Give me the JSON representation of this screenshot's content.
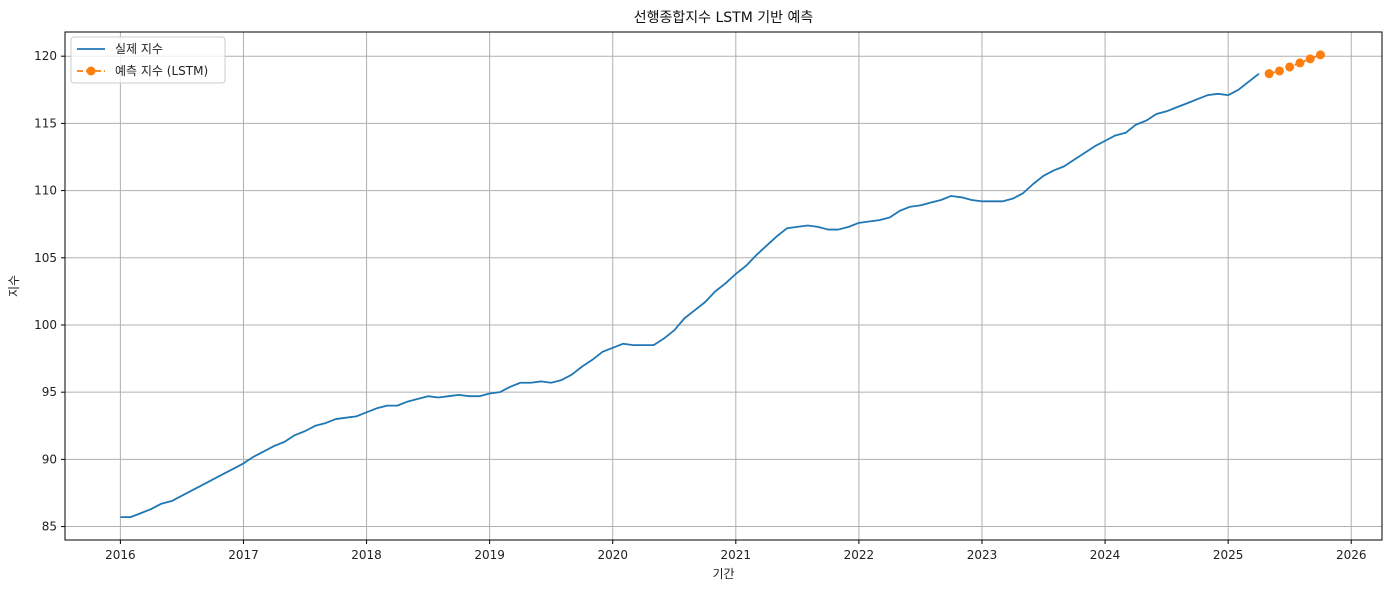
{
  "chart_data": {
    "type": "line",
    "title": "선행종합지수 LSTM 기반 예측",
    "xlabel": "기간",
    "ylabel": "지수",
    "xlim": [
      2015.55,
      2026.25
    ],
    "ylim": [
      84.0,
      121.8
    ],
    "x_ticks": [
      2016,
      2017,
      2018,
      2019,
      2020,
      2021,
      2022,
      2023,
      2024,
      2025,
      2026
    ],
    "x_tick_labels": [
      "2016",
      "2017",
      "2018",
      "2019",
      "2020",
      "2021",
      "2022",
      "2023",
      "2024",
      "2025",
      "2026"
    ],
    "y_ticks": [
      85,
      90,
      95,
      100,
      105,
      110,
      115,
      120
    ],
    "y_tick_labels": [
      "85",
      "90",
      "95",
      "100",
      "105",
      "110",
      "115",
      "120"
    ],
    "grid": true,
    "legend_position": "top-left",
    "series": [
      {
        "name": "실제 지수",
        "style": "solid",
        "color": "#1f77b4",
        "x": [
          2016.0,
          2016.083,
          2016.167,
          2016.25,
          2016.333,
          2016.417,
          2016.5,
          2016.583,
          2016.667,
          2016.75,
          2016.833,
          2016.917,
          2017.0,
          2017.083,
          2017.167,
          2017.25,
          2017.333,
          2017.417,
          2017.5,
          2017.583,
          2017.667,
          2017.75,
          2017.833,
          2017.917,
          2018.0,
          2018.083,
          2018.167,
          2018.25,
          2018.333,
          2018.417,
          2018.5,
          2018.583,
          2018.667,
          2018.75,
          2018.833,
          2018.917,
          2019.0,
          2019.083,
          2019.167,
          2019.25,
          2019.333,
          2019.417,
          2019.5,
          2019.583,
          2019.667,
          2019.75,
          2019.833,
          2019.917,
          2020.0,
          2020.083,
          2020.167,
          2020.25,
          2020.333,
          2020.417,
          2020.5,
          2020.583,
          2020.667,
          2020.75,
          2020.833,
          2020.917,
          2021.0,
          2021.083,
          2021.167,
          2021.25,
          2021.333,
          2021.417,
          2021.5,
          2021.583,
          2021.667,
          2021.75,
          2021.833,
          2021.917,
          2022.0,
          2022.083,
          2022.167,
          2022.25,
          2022.333,
          2022.417,
          2022.5,
          2022.583,
          2022.667,
          2022.75,
          2022.833,
          2022.917,
          2023.0,
          2023.083,
          2023.167,
          2023.25,
          2023.333,
          2023.417,
          2023.5,
          2023.583,
          2023.667,
          2023.75,
          2023.833,
          2023.917,
          2024.0,
          2024.083,
          2024.167,
          2024.25,
          2024.333,
          2024.417,
          2024.5,
          2024.583,
          2024.667,
          2024.75,
          2024.833,
          2024.917,
          2025.0,
          2025.083,
          2025.167,
          2025.25
        ],
        "values": [
          85.7,
          85.7,
          86.0,
          86.3,
          86.7,
          86.9,
          87.3,
          87.7,
          88.1,
          88.5,
          88.9,
          89.3,
          89.7,
          90.2,
          90.6,
          91.0,
          91.3,
          91.8,
          92.1,
          92.5,
          92.7,
          93.0,
          93.1,
          93.2,
          93.5,
          93.8,
          94.0,
          94.0,
          94.3,
          94.5,
          94.7,
          94.6,
          94.7,
          94.8,
          94.7,
          94.7,
          94.9,
          95.0,
          95.4,
          95.7,
          95.7,
          95.8,
          95.7,
          95.9,
          96.3,
          96.9,
          97.4,
          98.0,
          98.3,
          98.6,
          98.5,
          98.5,
          98.5,
          99.0,
          99.6,
          100.5,
          101.1,
          101.7,
          102.5,
          103.1,
          103.8,
          104.4,
          105.2,
          105.9,
          106.6,
          107.2,
          107.3,
          107.4,
          107.3,
          107.1,
          107.1,
          107.3,
          107.6,
          107.7,
          107.8,
          108.0,
          108.5,
          108.8,
          108.9,
          109.1,
          109.3,
          109.6,
          109.5,
          109.3,
          109.2,
          109.2,
          109.2,
          109.4,
          109.8,
          110.5,
          111.1,
          111.5,
          111.8,
          112.3,
          112.8,
          113.3,
          113.7,
          114.1,
          114.3,
          114.9,
          115.2,
          115.7,
          115.9,
          116.2,
          116.5,
          116.8,
          117.1,
          117.2,
          117.1,
          117.5,
          118.1,
          118.7
        ]
      },
      {
        "name": "예측 지수 (LSTM)",
        "style": "dashed",
        "marker": "circle",
        "color": "#ff7f0e",
        "x": [
          2025.333,
          2025.417,
          2025.5,
          2025.583,
          2025.667,
          2025.75
        ],
        "values": [
          118.7,
          118.9,
          119.2,
          119.5,
          119.8,
          120.1
        ]
      }
    ]
  }
}
